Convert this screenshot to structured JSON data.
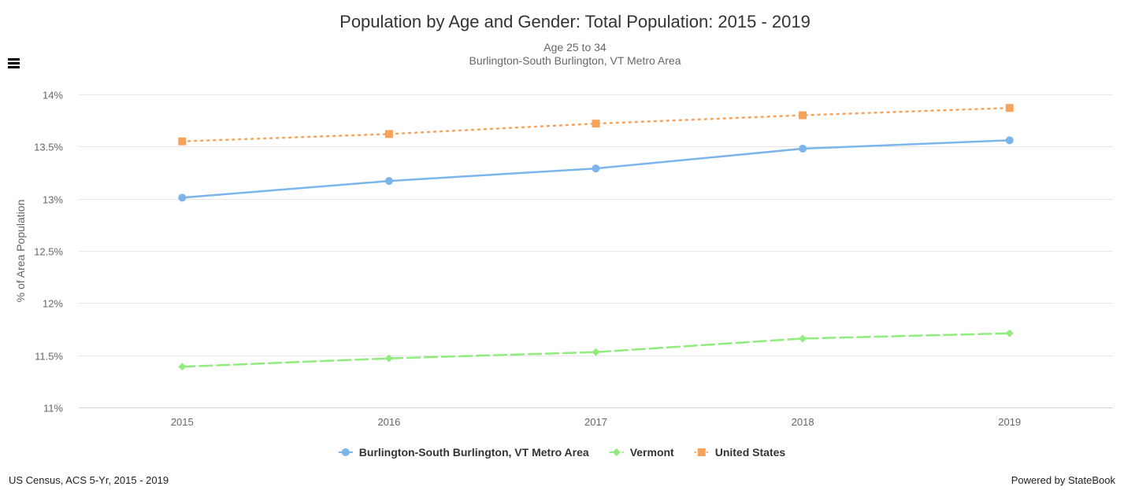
{
  "chart_data": {
    "type": "line",
    "title": "Population by Age and Gender: Total Population: 2015 - 2019",
    "subtitle_lines": [
      "Age 25 to 34",
      "Burlington-South Burlington, VT Metro Area"
    ],
    "xlabel": "",
    "ylabel": "% of Area Population",
    "categories": [
      "2015",
      "2016",
      "2017",
      "2018",
      "2019"
    ],
    "yticks": [
      11,
      11.5,
      12,
      12.5,
      13,
      13.5,
      14
    ],
    "ytick_labels": [
      "11%",
      "11.5%",
      "12%",
      "12.5%",
      "13%",
      "13.5%",
      "14%"
    ],
    "ylim": [
      11,
      14
    ],
    "grid": true,
    "legend_position": "bottom-center",
    "series": [
      {
        "name": "Burlington-South Burlington, VT Metro Area",
        "values": [
          13.01,
          13.17,
          13.29,
          13.48,
          13.56
        ],
        "color": "#7cb5ec",
        "dash": "solid",
        "marker": "circle"
      },
      {
        "name": "Vermont",
        "values": [
          11.39,
          11.47,
          11.53,
          11.66,
          11.71
        ],
        "color": "#90ed7d",
        "dash": "dashed",
        "marker": "diamond"
      },
      {
        "name": "United States",
        "values": [
          13.55,
          13.62,
          13.72,
          13.8,
          13.87
        ],
        "color": "#f7a35c",
        "dash": "dotted",
        "marker": "square"
      }
    ]
  },
  "footer": {
    "source": "US Census, ACS 5-Yr, 2015 - 2019",
    "credit": "Powered by StateBook"
  },
  "menu": {
    "icon": "hamburger-menu-icon"
  }
}
